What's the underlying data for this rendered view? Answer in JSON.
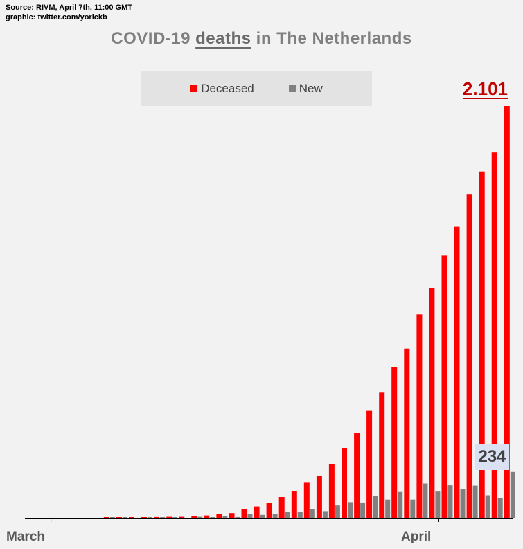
{
  "source": {
    "line1": "Source: RIVM, April 7th, 11:00 GMT",
    "line2": "graphic: twitter.com/yorickb"
  },
  "colors": {
    "deceased": "#ff0000",
    "new": "#808080",
    "background": "#f2f2f2"
  },
  "chart_data": {
    "type": "bar",
    "title_parts": [
      "COVID-19",
      "deaths",
      "in The Netherlands"
    ],
    "title_highlight": "deaths",
    "series": [
      {
        "name": "Deceased",
        "values": [
          0,
          0,
          0,
          0,
          0,
          0,
          1,
          2,
          2,
          3,
          4,
          5,
          5,
          10,
          12,
          20,
          24,
          43,
          58,
          76,
          106,
          136,
          179,
          213,
          276,
          356,
          434,
          546,
          639,
          771,
          864,
          1039,
          1173,
          1339,
          1487,
          1651,
          1766,
          1867,
          2101
        ]
      },
      {
        "name": "New",
        "values": [
          0,
          0,
          0,
          0,
          0,
          0,
          1,
          1,
          0,
          1,
          1,
          1,
          0,
          5,
          2,
          8,
          4,
          19,
          15,
          18,
          30,
          30,
          43,
          34,
          63,
          80,
          78,
          112,
          93,
          132,
          93,
          175,
          134,
          166,
          148,
          164,
          115,
          101,
          234
        ]
      }
    ],
    "categories": [
      "Feb 28",
      "Feb 29",
      "Mar 1",
      "Mar 2",
      "Mar 3",
      "Mar 4",
      "Mar 5",
      "Mar 6",
      "Mar 7",
      "Mar 8",
      "Mar 9",
      "Mar 10",
      "Mar 11",
      "Mar 12",
      "Mar 13",
      "Mar 14",
      "Mar 15",
      "Mar 16",
      "Mar 17",
      "Mar 18",
      "Mar 19",
      "Mar 20",
      "Mar 21",
      "Mar 22",
      "Mar 23",
      "Mar 24",
      "Mar 25",
      "Mar 26",
      "Mar 27",
      "Mar 28",
      "Mar 29",
      "Mar 30",
      "Mar 31",
      "Apr 1",
      "Apr 2",
      "Apr 3",
      "Apr 4",
      "Apr 5",
      "Apr 6"
    ],
    "x_tick_labels": [
      {
        "label": "March",
        "index": 2
      },
      {
        "label": "April",
        "index": 33
      }
    ],
    "ylim": [
      0,
      2150
    ],
    "grid": false,
    "legend": "top-center",
    "annotations": {
      "last_deceased": "2.101",
      "last_new": "234"
    }
  }
}
